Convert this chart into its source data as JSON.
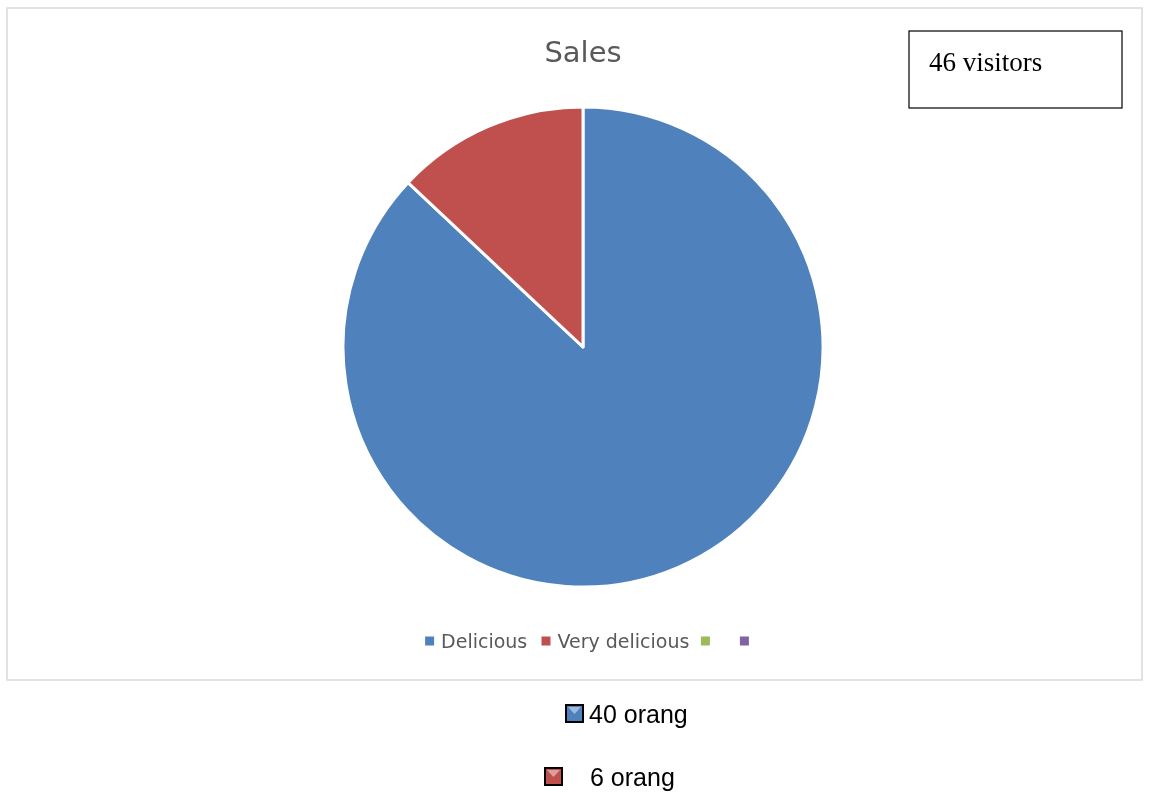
{
  "chart_data": {
    "type": "pie",
    "title": "Sales",
    "categories": [
      "Delicious",
      "Very delicious"
    ],
    "values": [
      87,
      13
    ],
    "colors": [
      "#4f81bd",
      "#c0504d"
    ],
    "legend": "bottom",
    "annotations": [
      "46 visitors",
      "40 orang",
      "6 orang"
    ]
  }
}
